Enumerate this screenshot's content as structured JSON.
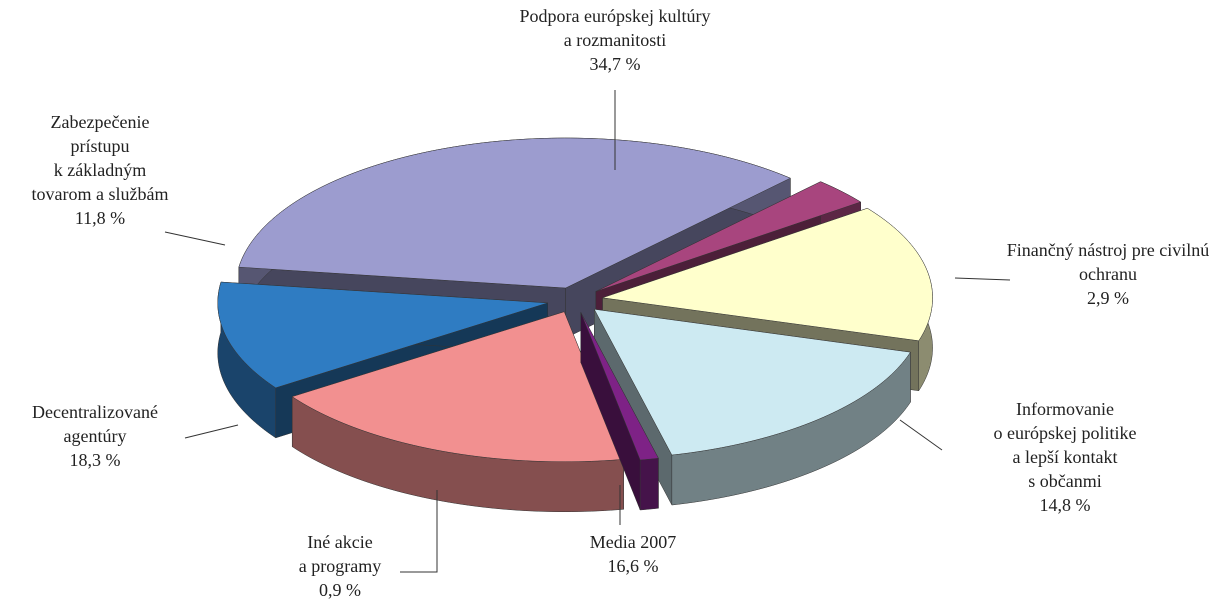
{
  "chart_data": {
    "type": "pie",
    "categories": [
      [
        "Podpora európskej kultúry",
        "a rozmanitosti"
      ],
      [
        "Finančný nástroj pre civilnú",
        "ochranu"
      ],
      [
        "Informovanie",
        "o európskej politike",
        "a lepší kontakt",
        "s občanmi"
      ],
      [
        "Media 2007"
      ],
      [
        "Iné akcie",
        "a programy"
      ],
      [
        "Decentralizované",
        "agentúry"
      ],
      [
        "Zabezpečenie",
        "prístupu",
        "k základným",
        "tovarom a službám"
      ]
    ],
    "values": [
      34.7,
      2.9,
      14.8,
      16.6,
      0.9,
      18.3,
      11.8
    ],
    "value_labels": [
      "34,7 %",
      "2,9 %",
      "14,8 %",
      "16,6 %",
      "0,9 %",
      "18,3 %",
      "11,8 %"
    ],
    "colors": [
      "#9c9ccf",
      "#a8457e",
      "#ffffcc",
      "#cdeaf2",
      "#7e2286",
      "#f29090",
      "#2f7cc2"
    ]
  }
}
